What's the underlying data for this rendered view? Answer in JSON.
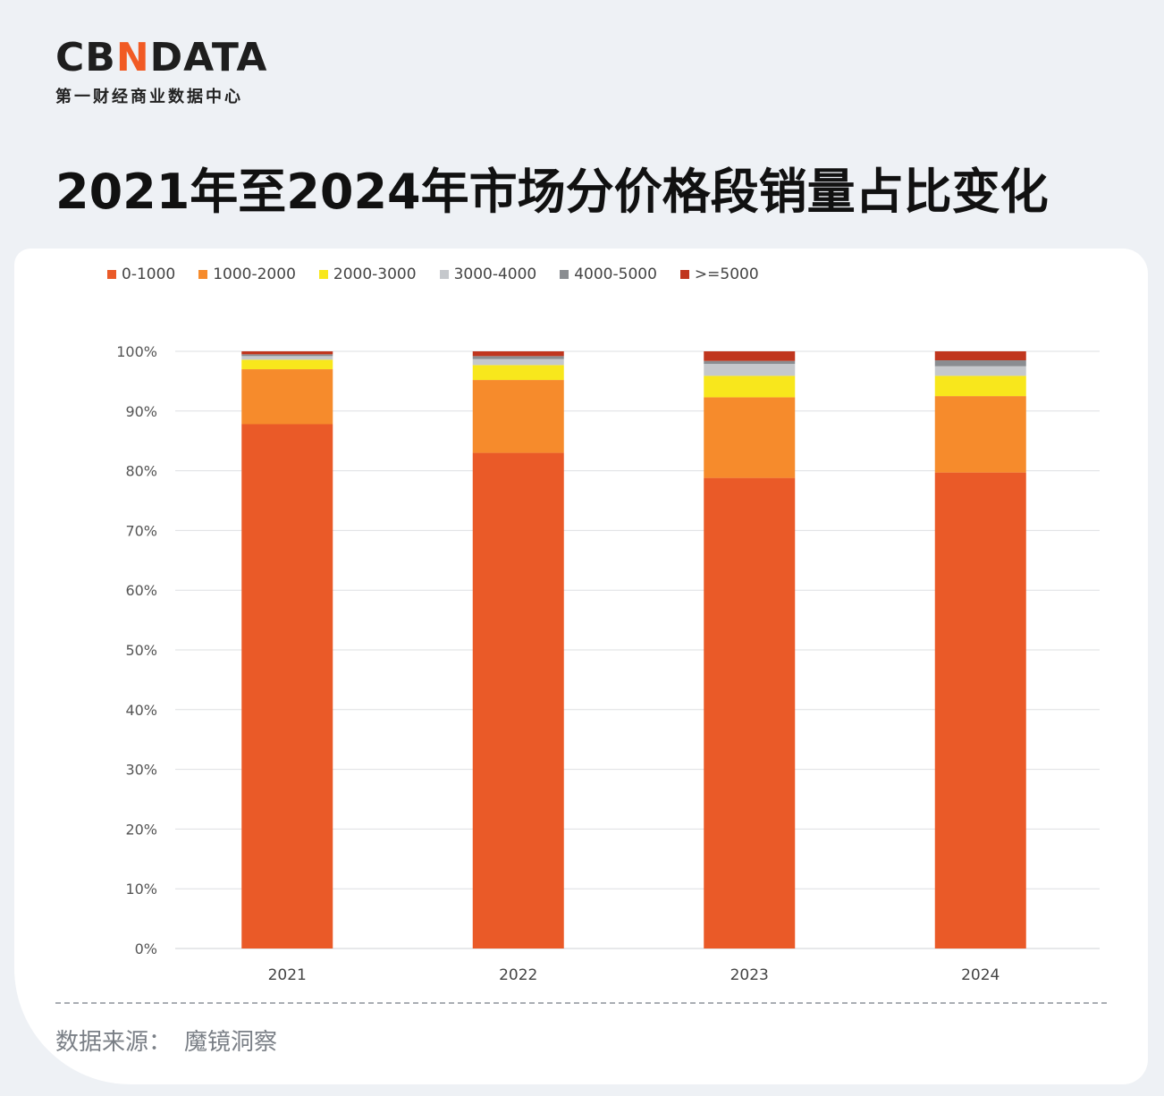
{
  "brand": {
    "logo_part1": "CB",
    "logo_accent": "N",
    "logo_part2": "DATA",
    "subtitle": "第一财经商业数据中心"
  },
  "headline": "2021年至2024年市场分价格段销量占比变化",
  "source": {
    "label": "数据来源：",
    "value": "魔镜洞察"
  },
  "chart_data": {
    "type": "bar",
    "stacked": true,
    "title": "",
    "xlabel": "",
    "ylabel": "",
    "ylim": [
      0,
      100
    ],
    "y_tick_labels": [
      "0%",
      "10%",
      "20%",
      "30%",
      "40%",
      "50%",
      "60%",
      "70%",
      "80%",
      "90%",
      "100%"
    ],
    "grid": true,
    "legend_position": "top-left",
    "categories": [
      "2021",
      "2022",
      "2023",
      "2024"
    ],
    "series": [
      {
        "name": "0-1000",
        "color": "#ea5a28",
        "values": [
          87.8,
          83.0,
          78.8,
          79.7
        ]
      },
      {
        "name": "1000-2000",
        "color": "#f68b2c",
        "values": [
          9.2,
          12.2,
          13.5,
          12.8
        ]
      },
      {
        "name": "2000-3000",
        "color": "#f8e71c",
        "values": [
          1.6,
          2.5,
          3.6,
          3.4
        ]
      },
      {
        "name": "3000-4000",
        "color": "#c5c8cc",
        "values": [
          0.6,
          1.0,
          2.0,
          1.6
        ]
      },
      {
        "name": "4000-5000",
        "color": "#8a8d91",
        "values": [
          0.3,
          0.5,
          0.5,
          1.0
        ]
      },
      {
        "name": ">=5000",
        "color": "#c0361e",
        "values": [
          0.5,
          0.8,
          1.6,
          1.5
        ]
      }
    ]
  }
}
